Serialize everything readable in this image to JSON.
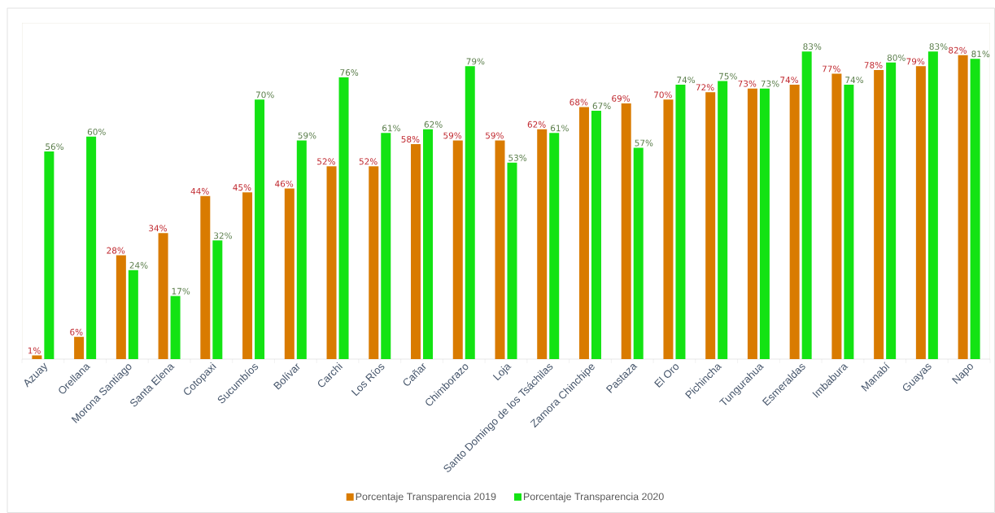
{
  "chart_data": {
    "type": "bar",
    "categories": [
      "Azuay",
      "Orellana",
      "Morona Santiago",
      "Santa Elena",
      "Cotopaxi",
      "Sucumbíos",
      "Bolívar",
      "Carchi",
      "Los Ríos",
      "Cañar",
      "Chimborazo",
      "Loja",
      "Santo Domingo de los Tsáchilas",
      "Zamora Chinchipe",
      "Pastaza",
      "El Oro",
      "Pichincha",
      "Tungurahua",
      "Esmeraldas",
      "Imbabura",
      "Manabí",
      "Guayas",
      "Napo"
    ],
    "series": [
      {
        "name": "Porcentaje Transparencia 2019",
        "color": "#d97b00",
        "values": [
          1,
          6,
          28,
          34,
          44,
          45,
          46,
          52,
          52,
          58,
          59,
          59,
          62,
          68,
          69,
          70,
          72,
          73,
          74,
          77,
          78,
          79,
          82
        ],
        "value_labels": [
          "1%",
          "6%",
          "28%",
          "34%",
          "44%",
          "45%",
          "46%",
          "52%",
          "52%",
          "58%",
          "59%",
          "59%",
          "62%",
          "68%",
          "69%",
          "70%",
          "72%",
          "73%",
          "74%",
          "77%",
          "78%",
          "79%",
          "82%"
        ]
      },
      {
        "name": "Porcentaje Transparencia 2020",
        "color": "#13e313",
        "values": [
          56,
          60,
          24,
          17,
          32,
          70,
          59,
          76,
          61,
          62,
          79,
          53,
          61,
          67,
          57,
          74,
          75,
          73,
          83,
          74,
          80,
          83,
          81
        ],
        "value_labels": [
          "56%",
          "60%",
          "24%",
          "17%",
          "32%",
          "70%",
          "59%",
          "76%",
          "61%",
          "62%",
          "79%",
          "53%",
          "61%",
          "67%",
          "57%",
          "74%",
          "75%",
          "73%",
          "83%",
          "74%",
          "80%",
          "83%",
          "81%"
        ]
      }
    ],
    "legend": "bottom",
    "tick_labels": "x"
  }
}
